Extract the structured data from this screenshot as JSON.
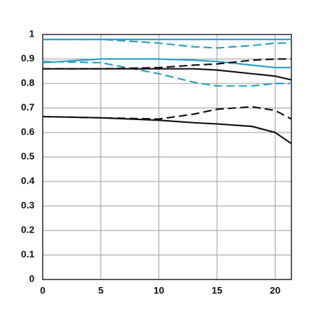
{
  "chart_data": {
    "type": "line",
    "x": [
      0,
      5,
      10,
      13,
      15,
      18,
      20,
      21.4
    ],
    "series": [
      {
        "color": "#2a9fc4",
        "dashed": false,
        "values": [
          0.98,
          0.98,
          0.98,
          0.98,
          0.98,
          0.98,
          0.98,
          0.98
        ]
      },
      {
        "color": "#2a9fc4",
        "dashed": true,
        "values": [
          0.98,
          0.98,
          0.965,
          0.95,
          0.945,
          0.955,
          0.965,
          0.965
        ]
      },
      {
        "color": "#2a9fc4",
        "dashed": false,
        "values": [
          0.885,
          0.9,
          0.9,
          0.895,
          0.89,
          0.875,
          0.865,
          0.865
        ]
      },
      {
        "color": "#2a9fc4",
        "dashed": true,
        "values": [
          0.89,
          0.885,
          0.84,
          0.805,
          0.79,
          0.79,
          0.8,
          0.8
        ]
      },
      {
        "color": "#111111",
        "dashed": false,
        "values": [
          0.86,
          0.86,
          0.86,
          0.86,
          0.855,
          0.84,
          0.83,
          0.815
        ]
      },
      {
        "color": "#111111",
        "dashed": true,
        "values": [
          0.86,
          0.86,
          0.865,
          0.875,
          0.88,
          0.895,
          0.9,
          0.9
        ]
      },
      {
        "color": "#111111",
        "dashed": false,
        "values": [
          0.665,
          0.66,
          0.65,
          0.64,
          0.635,
          0.625,
          0.6,
          0.555
        ]
      },
      {
        "color": "#111111",
        "dashed": true,
        "values": [
          0.665,
          0.66,
          0.655,
          0.675,
          0.695,
          0.705,
          0.69,
          0.655
        ]
      }
    ],
    "xlim": [
      0,
      21.4
    ],
    "xticks": [
      0,
      5,
      10,
      15,
      20
    ],
    "ylim": [
      0,
      1
    ],
    "yticks": [
      0,
      0.1,
      0.2,
      0.3,
      0.4,
      0.5,
      0.6,
      0.7,
      0.8,
      0.9,
      1
    ],
    "grid": true
  }
}
